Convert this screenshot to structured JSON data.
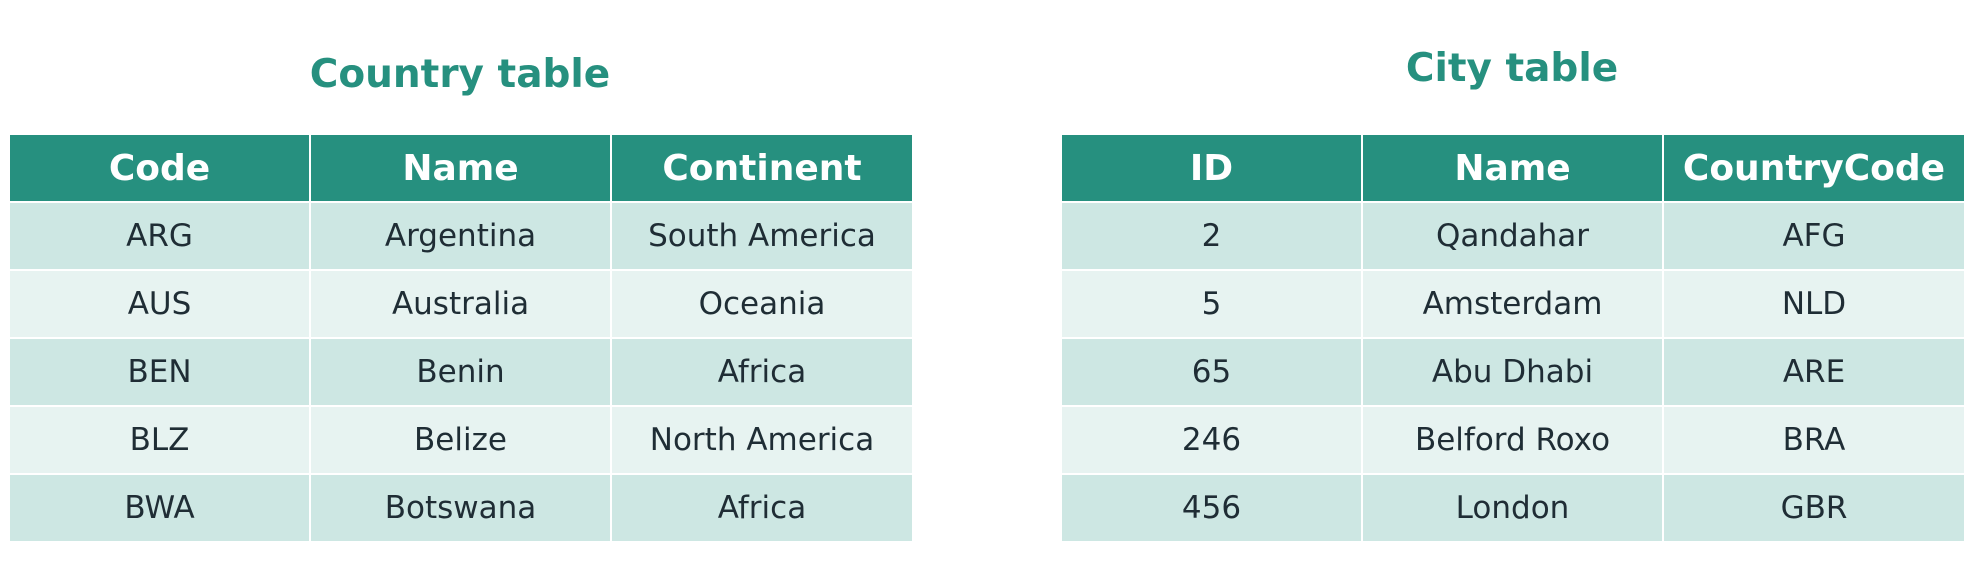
{
  "country_table": {
    "title": "Country table",
    "headers": [
      "Code",
      "Name",
      "Continent"
    ],
    "rows": [
      [
        "ARG",
        "Argentina",
        "South America"
      ],
      [
        "AUS",
        "Australia",
        "Oceania"
      ],
      [
        "BEN",
        "Benin",
        "Africa"
      ],
      [
        "BLZ",
        "Belize",
        "North America"
      ],
      [
        "BWA",
        "Botswana",
        "Africa"
      ]
    ]
  },
  "city_table": {
    "title": "City table",
    "headers": [
      "ID",
      "Name",
      "CountryCode"
    ],
    "rows": [
      [
        "2",
        "Qandahar",
        "AFG"
      ],
      [
        "5",
        "Amsterdam",
        "NLD"
      ],
      [
        "65",
        "Abu Dhabi",
        "ARE"
      ],
      [
        "246",
        "Belford Roxo",
        "BRA"
      ],
      [
        "456",
        "London",
        "GBR"
      ]
    ]
  },
  "colors": {
    "header_bg": "#26907f",
    "title_text": "#26907f",
    "row_dark": "#cde7e3",
    "row_light": "#e7f3f1",
    "cell_text": "#1f2d35"
  }
}
